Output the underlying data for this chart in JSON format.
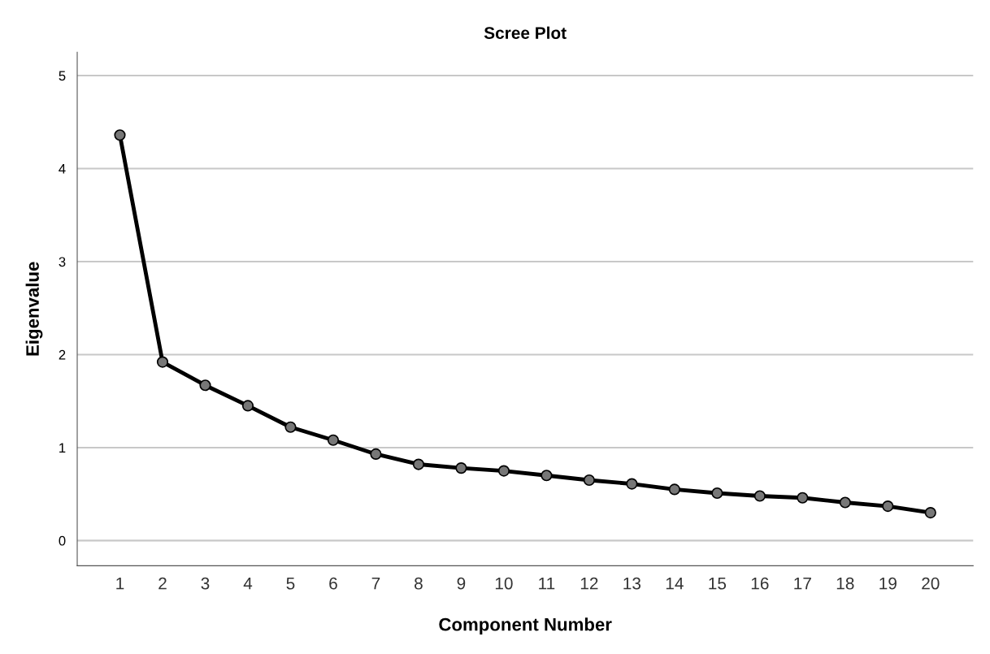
{
  "chart_data": {
    "type": "line",
    "title": "Scree Plot",
    "xlabel": "Component Number",
    "ylabel": "Eigenvalue",
    "categories": [
      "1",
      "2",
      "3",
      "4",
      "5",
      "6",
      "7",
      "8",
      "9",
      "10",
      "11",
      "12",
      "13",
      "14",
      "15",
      "16",
      "17",
      "18",
      "19",
      "20"
    ],
    "series": [
      {
        "color": "#000000",
        "values": [
          4.36,
          1.92,
          1.67,
          1.45,
          1.22,
          1.08,
          0.93,
          0.82,
          0.78,
          0.75,
          0.7,
          0.65,
          0.61,
          0.55,
          0.51,
          0.48,
          0.46,
          0.41,
          0.37,
          0.3
        ]
      }
    ],
    "ylim": [
      -0.27,
      5.25
    ],
    "yticks": [
      0,
      1,
      2,
      3,
      4,
      5
    ],
    "grid": "y",
    "marker": "circle",
    "line_style": "solid"
  }
}
